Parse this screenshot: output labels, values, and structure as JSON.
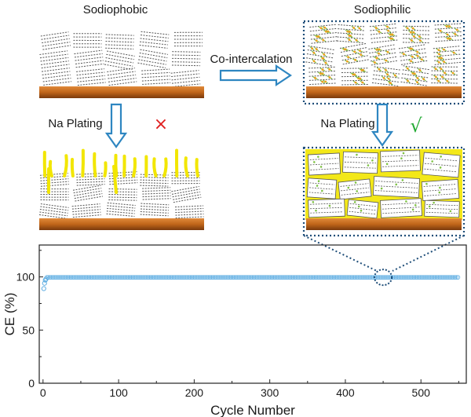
{
  "labels": {
    "sodiophobic": "Sodiophobic",
    "sodiophilic": "Sodiophilic",
    "co_intercalation": "Co-intercalation",
    "na_plating_left": "Na Plating",
    "na_plating_right": "Na Plating",
    "fail_mark": "×",
    "success_mark": "√"
  },
  "chart_data": {
    "type": "scatter",
    "xlabel": "Cycle Number",
    "ylabel": "CE (%)",
    "xlim": [
      -5,
      560
    ],
    "ylim": [
      0,
      130
    ],
    "xticks": [
      0,
      100,
      200,
      300,
      400,
      500
    ],
    "yticks": [
      0,
      50,
      100
    ],
    "series": [
      {
        "color": "#5dade2",
        "x": [
          1,
          2,
          3,
          4
        ],
        "y": [
          89,
          94,
          97,
          98
        ]
      },
      {
        "color": "#5dade2",
        "x_range": [
          5,
          550
        ],
        "y_constant": 99.6
      }
    ],
    "highlight_cycle": 450
  },
  "colors": {
    "arrow": "#2e86c1",
    "substrate": "#c0651a",
    "plating": "#f2e600",
    "fail": "#e02020",
    "success": "#22aa33",
    "marker": "#5dade2",
    "zoom_dots": "#1f4e79"
  }
}
